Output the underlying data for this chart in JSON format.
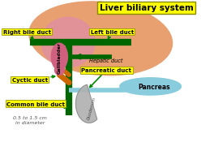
{
  "title": "Liver biliary system",
  "title_bg": "#FFFF00",
  "title_fontsize": 7.5,
  "bg_color": "#FFFFFF",
  "liver_color": "#E8A070",
  "liver_inner_color": "#E090A0",
  "gallbladder_color": "#D06080",
  "duct_color": "#006600",
  "cystic_duct_color": "#CC6600",
  "pancreas_color": "#88CCDD",
  "duodenum_color": "#B0B0B0",
  "label_bg": "#FFFF00",
  "label_fontsize": 5.0,
  "annotation_fontsize": 4.5,
  "arrow_color": "#008800",
  "labels": {
    "right_bile_duct": "Right bile duct",
    "left_bile_duct": "Left bile duct",
    "gallbladder": "Gallbladder",
    "hepatic_duct": "Hepatic duct",
    "pancreatic_duct": "Pancreatic duct",
    "cystic_duct": "Cyctic duct",
    "common_bile_duct": "Common bile duct",
    "duodenum": "Duodenum",
    "pancreas": "Pancreas",
    "diameter_note": "0.5 to 1.5 cm\nin diameter"
  },
  "xlim": [
    0,
    10
  ],
  "ylim": [
    0,
    8.5
  ]
}
